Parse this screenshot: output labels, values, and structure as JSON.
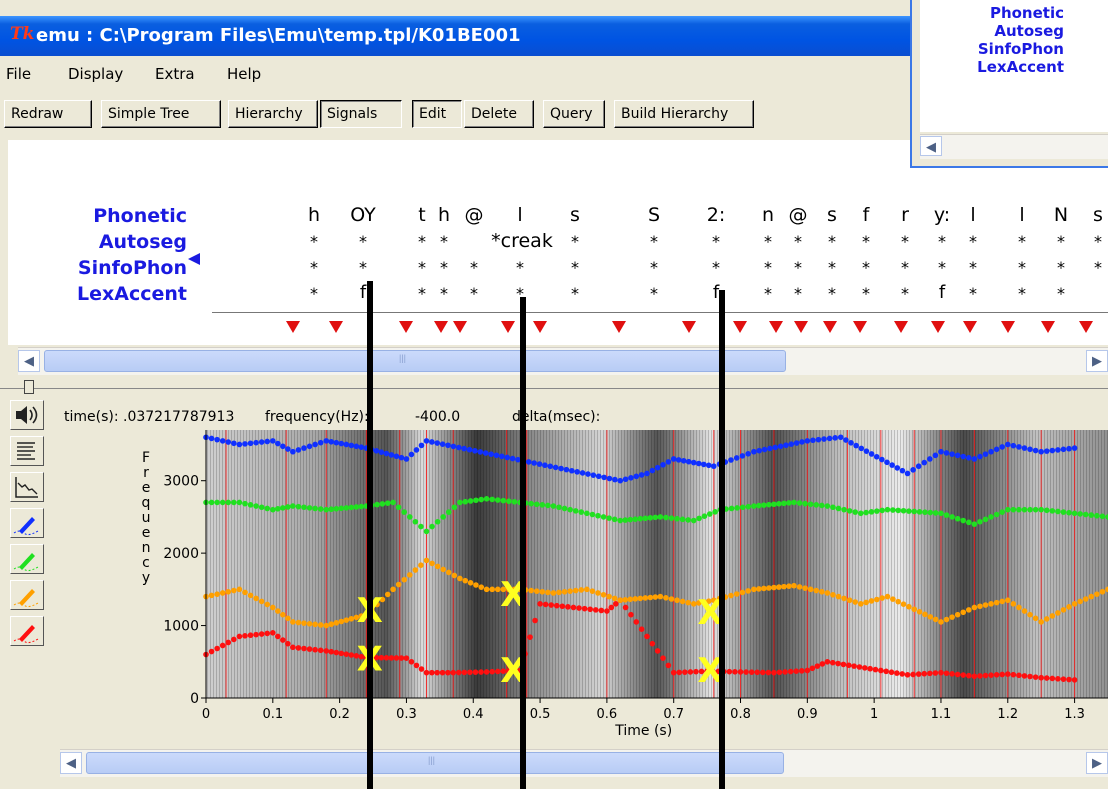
{
  "window": {
    "title": "emu : C:\\Program Files\\Emu\\temp.tpl/K01BE001",
    "app_icon_text": "Tk"
  },
  "menu": [
    "File",
    "Display",
    "Extra",
    "Help"
  ],
  "toolbar": {
    "buttons": [
      {
        "label": "Redraw"
      },
      {
        "label": "Simple Tree"
      },
      {
        "label": "Hierarchy"
      },
      {
        "label": "Signals"
      },
      {
        "label": "Edit"
      },
      {
        "label": "Delete"
      },
      {
        "label": "Query"
      },
      {
        "label": "Build Hierarchy"
      }
    ]
  },
  "tiers": [
    "Phonetic",
    "Autoseg",
    "SinfoPhon",
    "LexAccent"
  ],
  "overlay_window": {
    "tiers": [
      "Phonetic",
      "Autoseg",
      "SinfoPhon",
      "LexAccent"
    ]
  },
  "phonetic_labels": [
    "h",
    "OY",
    "t",
    "h",
    "@",
    "l",
    "s",
    "S",
    "2:",
    "n",
    "@",
    "s",
    "f",
    "r",
    "y:",
    "l",
    "l",
    "N",
    "s"
  ],
  "autoseg_marks": [
    "*",
    "*",
    "*",
    "*",
    "*creak",
    "*",
    "*",
    "*",
    "*",
    "*",
    "*",
    "*",
    "*",
    "*",
    "*",
    "*",
    "*",
    "*"
  ],
  "lexaccent_marks": [
    "*",
    "f",
    "*",
    "*",
    "*",
    "*",
    "*",
    "*",
    "f",
    "*",
    "*",
    "*",
    "*",
    "*",
    "f",
    "*",
    "*",
    "*"
  ],
  "signal_header": {
    "time_label": "time(s): .037217787913",
    "freq_label": "frequency(Hz):",
    "freq_value": "-400.0",
    "delta_label": "delta(msec):"
  },
  "cursor_marks": [
    "X",
    "X",
    "X",
    "X",
    "X",
    "X"
  ],
  "colors": {
    "title_bar": "#0054e3",
    "tier_label": "#1a1ae0",
    "boundary_marker": "#e01010",
    "formant_f1": "#ff1010",
    "formant_f2": "#ffa000",
    "formant_f3": "#20e020",
    "formant_f4": "#1030ff",
    "cross_mark": "#ffff20"
  },
  "chart_data": {
    "type": "scatter",
    "title": "",
    "xlabel": "Time (s)",
    "ylabel": "Frequency",
    "xlim": [
      0,
      1.35
    ],
    "ylim": [
      0,
      3700
    ],
    "x_ticks": [
      "0",
      "0.1",
      "0.2",
      "0.3",
      "0.4",
      "0.5",
      "0.6",
      "0.7",
      "0.8",
      "0.9",
      "1",
      "1.1",
      "1.2",
      "1.3"
    ],
    "y_ticks": [
      "0",
      "1000",
      "2000",
      "3000"
    ],
    "ylabel_letters": [
      "F",
      "r",
      "e",
      "q",
      "u",
      "e",
      "n",
      "c",
      "y"
    ],
    "series": [
      {
        "color": "#ff1010",
        "x": [
          0.0,
          0.05,
          0.1,
          0.13,
          0.18,
          0.24,
          0.3,
          0.33,
          0.37,
          0.42,
          0.47,
          0.5,
          0.55,
          0.6,
          0.62,
          0.7,
          0.75,
          0.8,
          0.85,
          0.9,
          0.93,
          1.05,
          1.1,
          1.15,
          1.2,
          1.25,
          1.3
        ],
        "y": [
          600,
          850,
          900,
          700,
          650,
          560,
          550,
          350,
          350,
          360,
          380,
          1300,
          1250,
          1200,
          1350,
          350,
          370,
          360,
          350,
          380,
          500,
          320,
          350,
          300,
          330,
          280,
          250
        ]
      },
      {
        "color": "#ffa000",
        "x": [
          0.0,
          0.05,
          0.1,
          0.13,
          0.18,
          0.24,
          0.28,
          0.33,
          0.38,
          0.42,
          0.47,
          0.52,
          0.57,
          0.62,
          0.68,
          0.73,
          0.76,
          0.82,
          0.88,
          0.93,
          0.98,
          1.02,
          1.1,
          1.15,
          1.2,
          1.25,
          1.3,
          1.35
        ],
        "y": [
          1400,
          1500,
          1250,
          1050,
          1000,
          1150,
          1500,
          1900,
          1650,
          1500,
          1500,
          1450,
          1500,
          1350,
          1400,
          1300,
          1350,
          1500,
          1550,
          1450,
          1300,
          1400,
          1050,
          1250,
          1350,
          1050,
          1300,
          1500
        ]
      },
      {
        "color": "#20e020",
        "x": [
          0.0,
          0.05,
          0.1,
          0.13,
          0.18,
          0.24,
          0.28,
          0.33,
          0.38,
          0.42,
          0.47,
          0.52,
          0.57,
          0.62,
          0.68,
          0.73,
          0.77,
          0.82,
          0.88,
          0.93,
          0.98,
          1.02,
          1.1,
          1.15,
          1.2,
          1.25,
          1.3,
          1.35
        ],
        "y": [
          2700,
          2700,
          2600,
          2650,
          2600,
          2650,
          2700,
          2300,
          2700,
          2750,
          2700,
          2650,
          2550,
          2450,
          2500,
          2450,
          2600,
          2650,
          2700,
          2650,
          2550,
          2600,
          2550,
          2400,
          2600,
          2600,
          2550,
          2500
        ]
      },
      {
        "color": "#1030ff",
        "x": [
          0.0,
          0.05,
          0.1,
          0.13,
          0.18,
          0.24,
          0.3,
          0.33,
          0.62,
          0.66,
          0.7,
          0.76,
          0.82,
          0.9,
          0.95,
          1.05,
          1.1,
          1.15,
          1.2,
          1.25,
          1.3
        ],
        "y": [
          3600,
          3500,
          3550,
          3400,
          3550,
          3450,
          3300,
          3550,
          3000,
          3100,
          3300,
          3200,
          3400,
          3550,
          3600,
          3100,
          3400,
          3300,
          3500,
          3400,
          3450
        ]
      }
    ]
  }
}
